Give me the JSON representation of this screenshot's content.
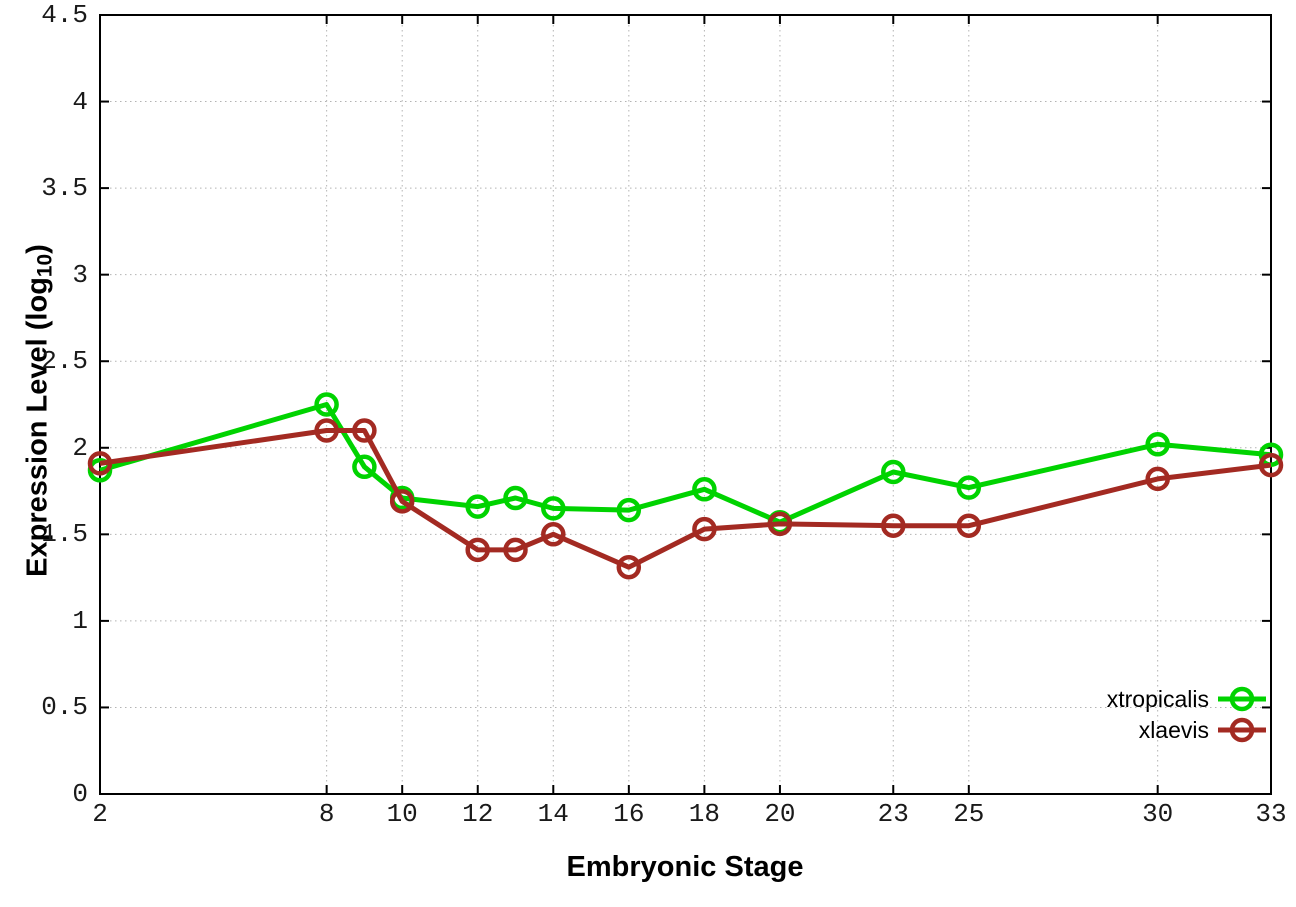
{
  "chart_data": {
    "type": "line",
    "xlabel": "Embryonic Stage",
    "ylabel_prefix": "Expression Level (log",
    "ylabel_sub": "10",
    "ylabel_suffix": ")",
    "x": [
      2,
      8,
      9,
      10,
      12,
      13,
      14,
      16,
      18,
      20,
      23,
      25,
      30,
      33
    ],
    "series": [
      {
        "name": "xtropicalis",
        "color": "#00d300",
        "values": [
          1.87,
          2.25,
          1.89,
          1.71,
          1.66,
          1.71,
          1.65,
          1.64,
          1.76,
          1.57,
          1.86,
          1.77,
          2.02,
          1.96
        ]
      },
      {
        "name": "xlaevis",
        "color": "#a32a22",
        "values": [
          1.91,
          2.1,
          2.1,
          1.69,
          1.41,
          1.41,
          1.5,
          1.31,
          1.53,
          1.56,
          1.55,
          1.55,
          1.82,
          1.9
        ]
      }
    ],
    "xlim": [
      2,
      33
    ],
    "ylim": [
      0,
      4.5
    ],
    "xticks": {
      "values": [
        2,
        8,
        10,
        12,
        14,
        16,
        18,
        20,
        23,
        25,
        30,
        33
      ],
      "labels": [
        "2",
        "8",
        "10",
        "12",
        "14",
        "16",
        "18",
        "20",
        "23",
        "25",
        "30",
        "33"
      ]
    },
    "yticks": {
      "values": [
        0,
        0.5,
        1,
        1.5,
        2,
        2.5,
        3,
        3.5,
        4,
        4.5
      ],
      "labels": [
        "0",
        "0.5",
        "1",
        "1.5",
        "2",
        "2.5",
        "3",
        "3.5",
        "4",
        "4.5"
      ]
    },
    "grid": true,
    "legend_position": "bottom-right",
    "colors": {
      "grid": "#b3b3b3",
      "axis": "#000000",
      "tick_text": "#1a1a1a",
      "background": "#ffffff"
    }
  }
}
